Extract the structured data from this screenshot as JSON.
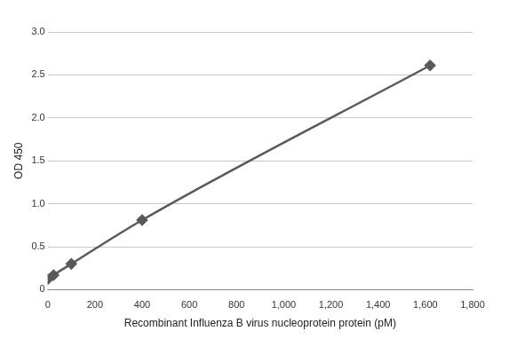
{
  "chart_data": {
    "type": "line",
    "x_label": "Recombinant Influenza B virus nucleoprotein protein (pM)",
    "y_label": "OD 450",
    "x": [
      0,
      25,
      100,
      400,
      1620
    ],
    "values": [
      0.12,
      0.17,
      0.3,
      0.81,
      2.61
    ],
    "color": "#595959",
    "marker": "diamond",
    "xlim": [
      0,
      1800
    ],
    "xticks": [
      0,
      200,
      400,
      600,
      800,
      1000,
      1200,
      1400,
      1600,
      1800
    ],
    "ylim": [
      0,
      3
    ],
    "yticks": [
      0,
      0.5,
      1,
      1.5,
      2,
      2.5,
      3
    ],
    "grid": true
  }
}
